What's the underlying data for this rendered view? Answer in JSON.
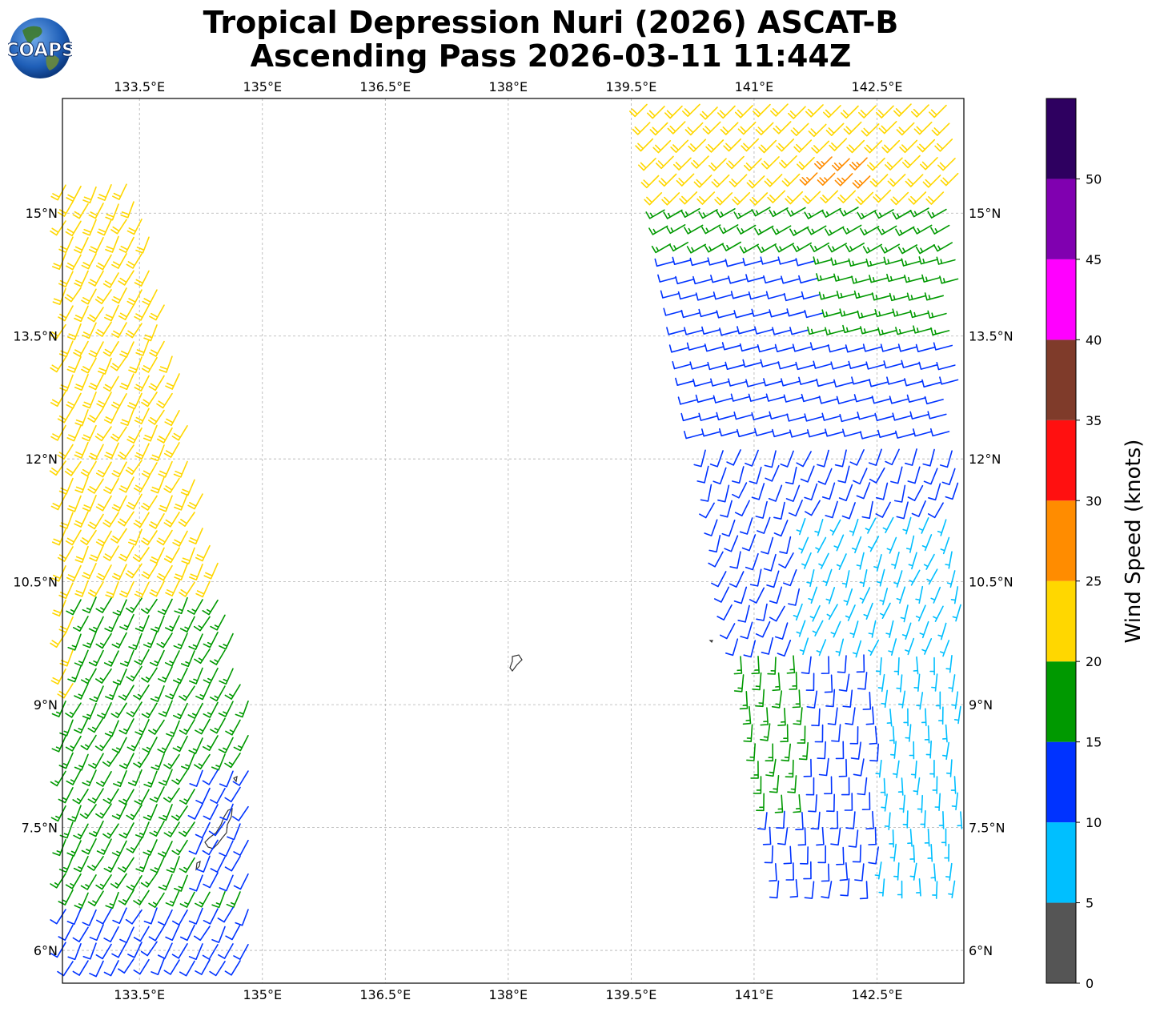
{
  "title_line1": "Tropical Depression Nuri (2026) ASCAT-B",
  "title_line2": "Ascending Pass 2026-03-11 11:44Z",
  "logo_text": "COAPS",
  "map": {
    "lon_range": [
      132.56,
      143.56
    ],
    "lat_range": [
      5.6,
      16.4
    ],
    "lon_ticks": [
      "133.5°E",
      "135°E",
      "136.5°E",
      "138°E",
      "139.5°E",
      "141°E",
      "142.5°E"
    ],
    "lon_tick_values": [
      133.5,
      135,
      136.5,
      138,
      139.5,
      141,
      142.5
    ],
    "lat_ticks": [
      "6°N",
      "7.5°N",
      "9°N",
      "10.5°N",
      "12°N",
      "13.5°N",
      "15°N"
    ],
    "lat_tick_values": [
      6,
      7.5,
      9,
      10.5,
      12,
      13.5,
      15
    ],
    "grid": true,
    "gridline_style": "dashed"
  },
  "colorbar": {
    "title": "Wind Speed (knots)",
    "tick_labels": [
      "0",
      "5",
      "10",
      "15",
      "20",
      "25",
      "30",
      "35",
      "40",
      "45",
      "50"
    ],
    "bounds": [
      0,
      5,
      10,
      15,
      20,
      25,
      30,
      35,
      40,
      45,
      50,
      55
    ],
    "colors": [
      "#555555",
      "#00bfff",
      "#0033ff",
      "#009900",
      "#ffd700",
      "#ff8c00",
      "#ff1010",
      "#7f3b2a",
      "#ff00ff",
      "#8000b0",
      "#2e0060"
    ]
  },
  "colors": {
    "calm": "#555555",
    "light": "#00bfff",
    "moderate": "#0033ff",
    "fresh": "#009900",
    "strong": "#ffd700",
    "gale": "#ff8c00",
    "coastline": "#333333",
    "grid": "#b0b0b0"
  }
}
